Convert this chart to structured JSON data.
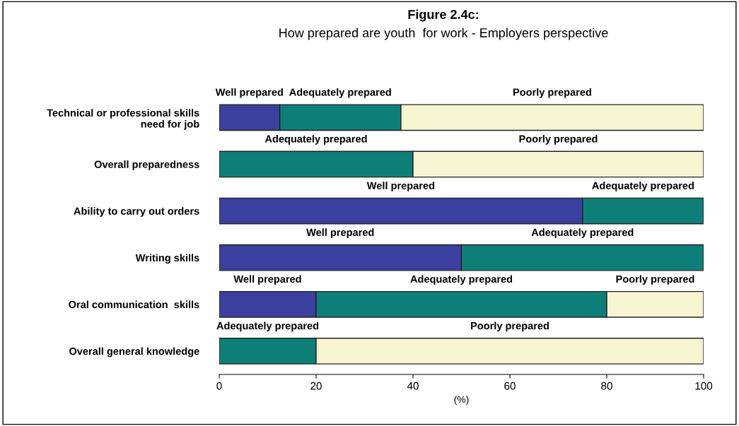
{
  "chart_data": {
    "type": "bar",
    "orientation": "horizontal",
    "stacked": true,
    "title": "Figure 2.4c:",
    "subtitle": "How prepared are youth  for work - Employers perspective",
    "xlabel": "(%)",
    "categories": [
      "Technical or professional skills\nneed for job",
      "Overall preparedness",
      "Ability to carry out orders",
      "Writing skills",
      "Oral communication  skills",
      "Overall general knowledge"
    ],
    "series": [
      {
        "name": "Well prepared",
        "color": "#3b3f9e",
        "values": [
          12.5,
          null,
          75,
          50,
          20,
          null
        ]
      },
      {
        "name": "Adequately prepared",
        "color": "#0e7f78",
        "values": [
          25,
          40,
          25,
          50,
          60,
          20
        ]
      },
      {
        "name": "Poorly prepared",
        "color": "#f7f5d2",
        "values": [
          62.5,
          60,
          null,
          null,
          20,
          80
        ]
      }
    ],
    "xlim": [
      0,
      100
    ],
    "xticks": [
      0,
      20,
      40,
      60,
      80,
      100
    ],
    "grid": false,
    "legend": false
  }
}
